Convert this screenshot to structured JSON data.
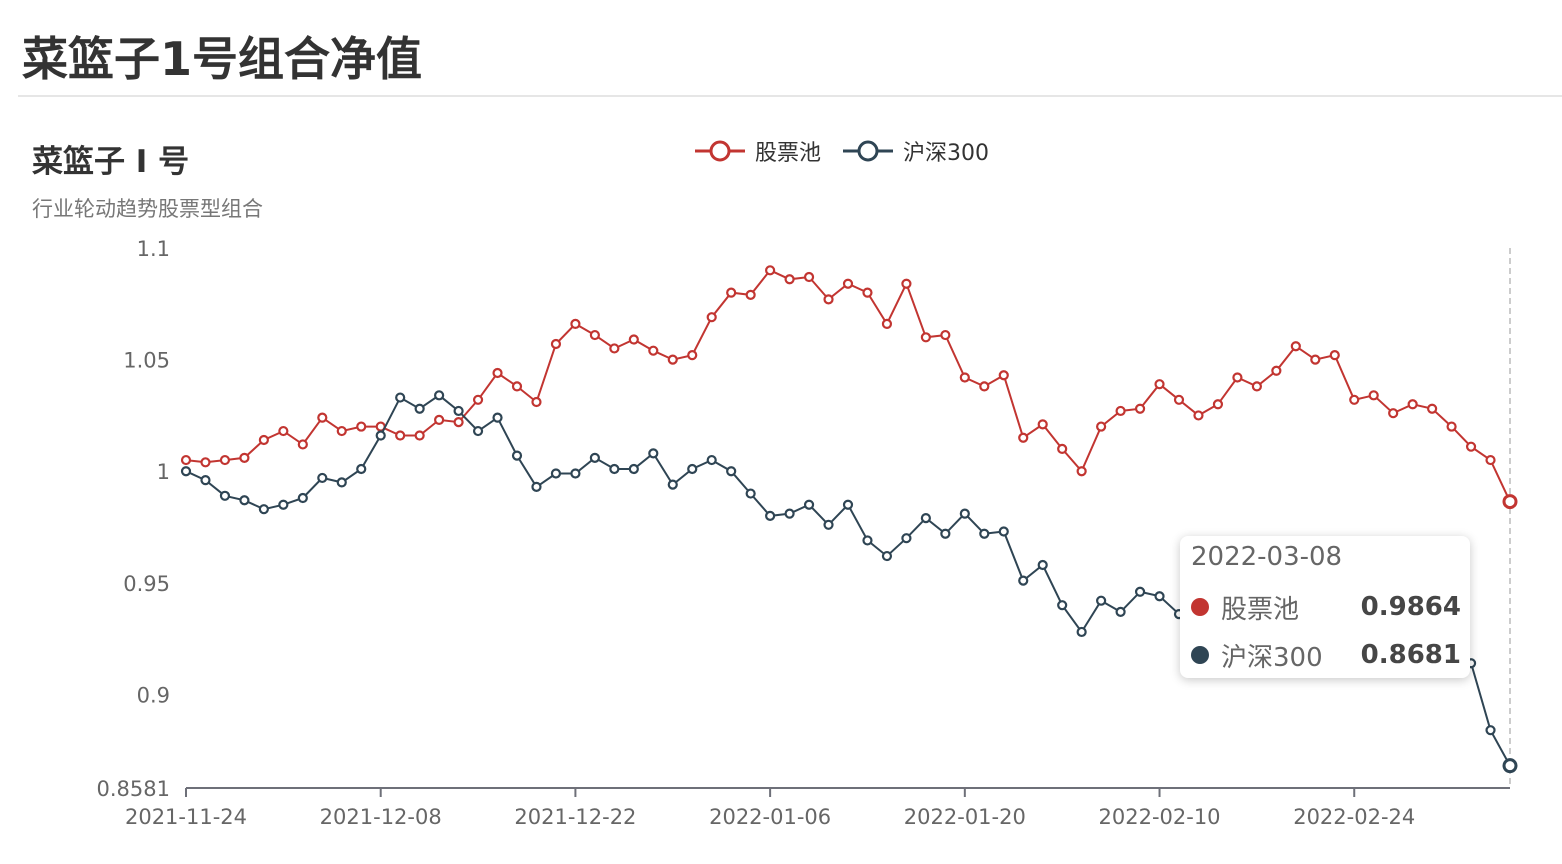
{
  "page": {
    "title": "菜篮子1号组合净值"
  },
  "chart_data": {
    "type": "line",
    "title": "菜篮子 I 号",
    "subtitle": "行业轮动趋势股票型组合",
    "legend_position": "top-center",
    "y_ticks": [
      {
        "value": 1.1,
        "label": "1.1"
      },
      {
        "value": 1.05,
        "label": "1.05"
      },
      {
        "value": 1.0,
        "label": "1"
      },
      {
        "value": 0.95,
        "label": "0.95"
      },
      {
        "value": 0.9,
        "label": "0.9"
      },
      {
        "value": 0.8581,
        "label": "0.8581"
      }
    ],
    "ylim": [
      0.8581,
      1.1
    ],
    "x_tick_labels": [
      {
        "index": 0,
        "label": "2021-11-24"
      },
      {
        "index": 10,
        "label": "2021-12-08"
      },
      {
        "index": 20,
        "label": "2021-12-22"
      },
      {
        "index": 30,
        "label": "2022-01-06"
      },
      {
        "index": 40,
        "label": "2022-01-20"
      },
      {
        "index": 50,
        "label": "2022-02-10"
      },
      {
        "index": 60,
        "label": "2022-02-24"
      }
    ],
    "point_count": 69,
    "grid": false,
    "series": [
      {
        "name": "股票池",
        "color": "#c23531",
        "values": [
          1.005,
          1.004,
          1.005,
          1.006,
          1.014,
          1.018,
          1.012,
          1.024,
          1.018,
          1.02,
          1.02,
          1.016,
          1.016,
          1.023,
          1.022,
          1.032,
          1.044,
          1.038,
          1.031,
          1.057,
          1.066,
          1.061,
          1.055,
          1.059,
          1.054,
          1.05,
          1.052,
          1.069,
          1.08,
          1.079,
          1.09,
          1.086,
          1.087,
          1.077,
          1.084,
          1.08,
          1.066,
          1.084,
          1.06,
          1.061,
          1.042,
          1.038,
          1.043,
          1.015,
          1.021,
          1.01,
          1.0,
          1.02,
          1.027,
          1.028,
          1.039,
          1.032,
          1.025,
          1.03,
          1.042,
          1.038,
          1.045,
          1.056,
          1.05,
          1.052,
          1.032,
          1.034,
          1.026,
          1.03,
          1.028,
          1.02,
          1.011,
          1.005,
          0.9864
        ]
      },
      {
        "name": "沪深300",
        "color": "#2f4554",
        "values": [
          1.0,
          0.996,
          0.989,
          0.987,
          0.983,
          0.985,
          0.988,
          0.997,
          0.995,
          1.001,
          1.016,
          1.033,
          1.028,
          1.034,
          1.027,
          1.018,
          1.024,
          1.007,
          0.993,
          0.999,
          0.999,
          1.006,
          1.001,
          1.001,
          1.008,
          0.994,
          1.001,
          1.005,
          1.0,
          0.99,
          0.98,
          0.981,
          0.985,
          0.976,
          0.985,
          0.969,
          0.962,
          0.97,
          0.979,
          0.972,
          0.981,
          0.972,
          0.973,
          0.951,
          0.958,
          0.94,
          0.928,
          0.942,
          0.937,
          0.946,
          0.944,
          0.936,
          0.94,
          0.938,
          0.943,
          0.941,
          0.936,
          0.944,
          0.937,
          0.935,
          0.93,
          0.928,
          0.925,
          0.924,
          0.922,
          0.918,
          0.914,
          0.884,
          0.8681
        ]
      }
    ]
  },
  "tooltip": {
    "date": "2022-03-08",
    "rows": [
      {
        "name": "股票池",
        "value": "0.9864",
        "color": "#c23531"
      },
      {
        "name": "沪深300",
        "value": "0.8681",
        "color": "#2f4554"
      }
    ]
  }
}
